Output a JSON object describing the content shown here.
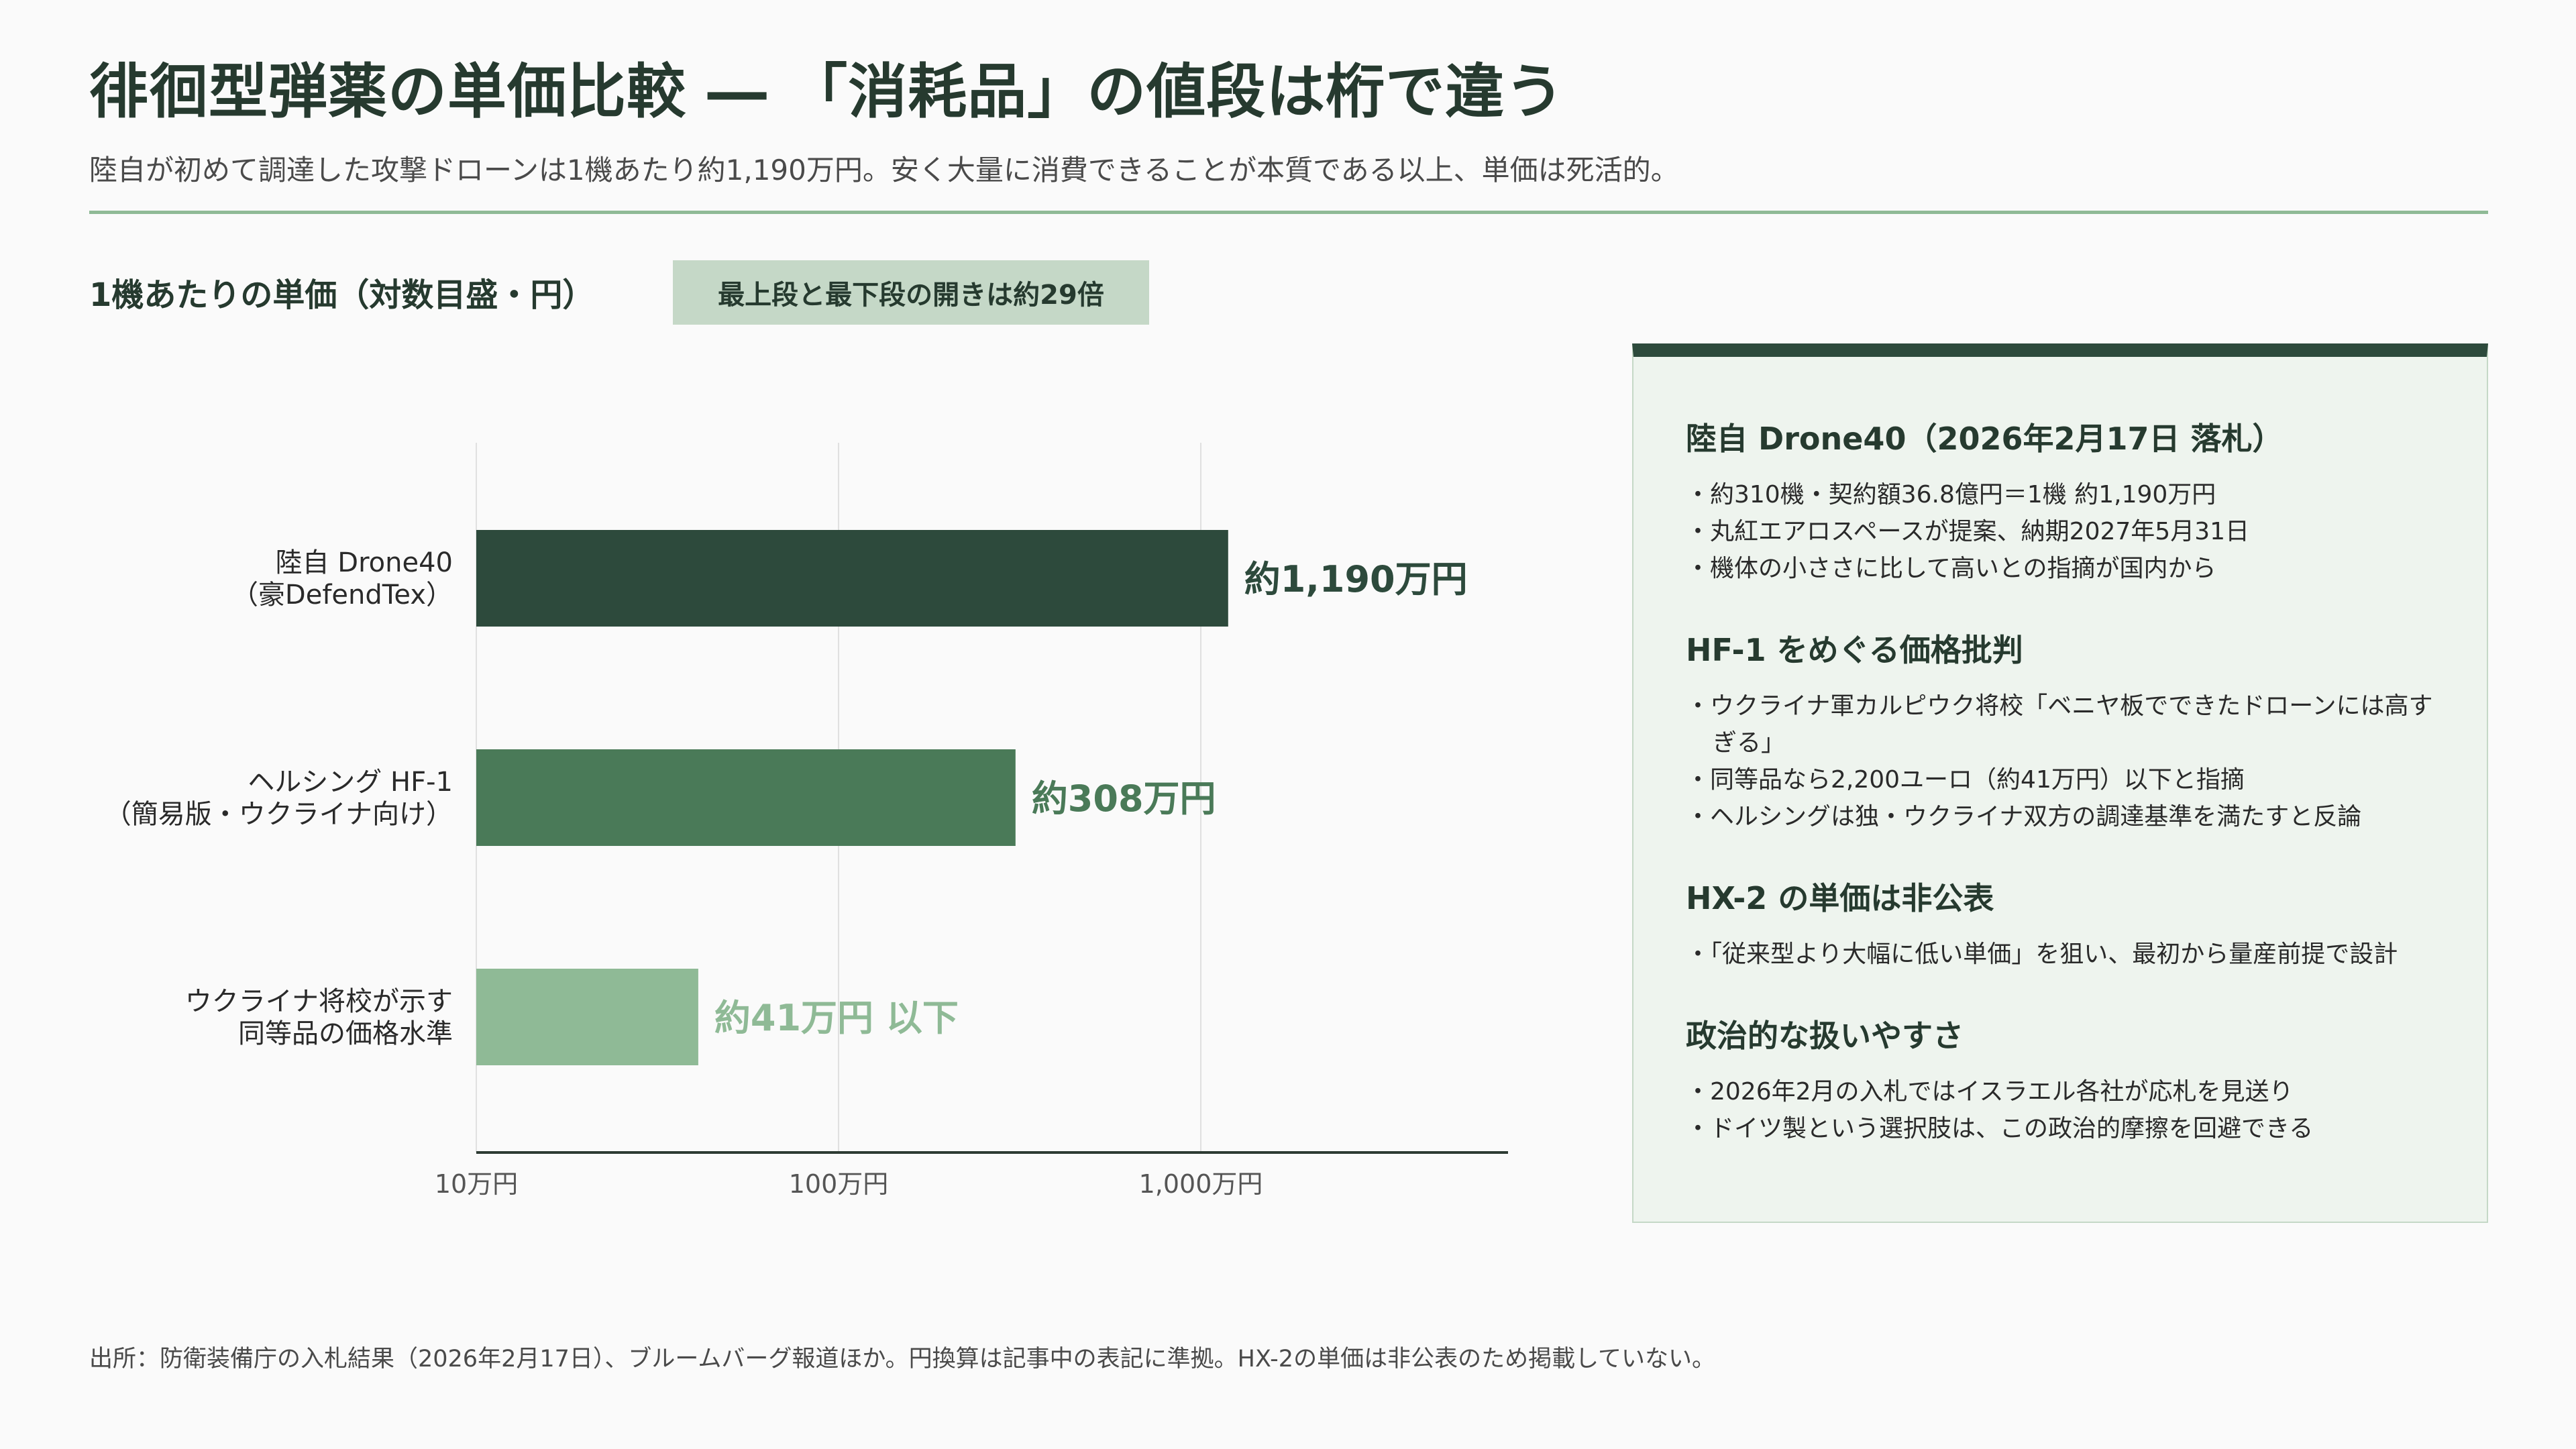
{
  "header": {
    "title": "徘徊型弾薬の単価比較 ― 「消耗品」の値段は桁で違う",
    "subtitle": "陸自が初めて調達した攻撃ドローンは1機あたり約1,190万円。安く大量に消費できることが本質である以上、単価は死活的。"
  },
  "chart_header": {
    "title": "1機あたりの単価（対数目盛・円）",
    "ratio_badge": "最上段と最下段の開きは約29倍"
  },
  "chart_data": {
    "type": "bar",
    "orientation": "horizontal",
    "scale": "log",
    "xlim": [
      100000,
      30000000
    ],
    "ticks": [
      {
        "value": 100000,
        "label": "10万円"
      },
      {
        "value": 1000000,
        "label": "100万円"
      },
      {
        "value": 10000000,
        "label": "1,000万円"
      }
    ],
    "grid": true,
    "bars": [
      {
        "label_lines": [
          "陸自 Drone40",
          "（豪DefendTex）"
        ],
        "value": 11900000,
        "value_label": "約1,190万円",
        "color": "#2d4a3c"
      },
      {
        "label_lines": [
          "ヘルシング HF-1",
          "（簡易版・ウクライナ向け）"
        ],
        "value": 3080000,
        "value_label": "約308万円",
        "color": "#4a7a58"
      },
      {
        "label_lines": [
          "ウクライナ将校が示す",
          "同等品の価格水準"
        ],
        "value": 410000,
        "value_label": "約41万円 以下",
        "color": "#8fba96"
      }
    ]
  },
  "panel": {
    "sections": [
      {
        "heading": "陸自 Drone40（2026年2月17日 落札）",
        "items": [
          "・約310機・契約額36.8億円＝1機 約1,190万円",
          "・丸紅エアロスペースが提案、納期2027年5月31日",
          "・機体の小ささに比して高いとの指摘が国内から"
        ]
      },
      {
        "heading": "HF-1 をめぐる価格批判",
        "items": [
          "・ウクライナ軍カルピウク将校「ベニヤ板でできたドローンには高すぎる」",
          "・同等品なら2,200ユーロ（約41万円）以下と指摘",
          "・ヘルシングは独・ウクライナ双方の調達基準を満たすと反論"
        ]
      },
      {
        "heading": "HX-2 の単価は非公表",
        "items": [
          "・「従来型より大幅に低い単価」を狙い、最初から量産前提で設計"
        ]
      },
      {
        "heading": "政治的な扱いやすさ",
        "items": [
          "・2026年2月の入札ではイスラエル各社が応札を見送り",
          "・ドイツ製という選択肢は、この政治的摩擦を回避できる"
        ]
      }
    ]
  },
  "footnote": "出所：防衛装備庁の入札結果（2026年2月17日）、ブルームバーグ報道ほか。円換算は記事中の表記に準拠。HX-2の単価は非公表のため掲載していない。"
}
